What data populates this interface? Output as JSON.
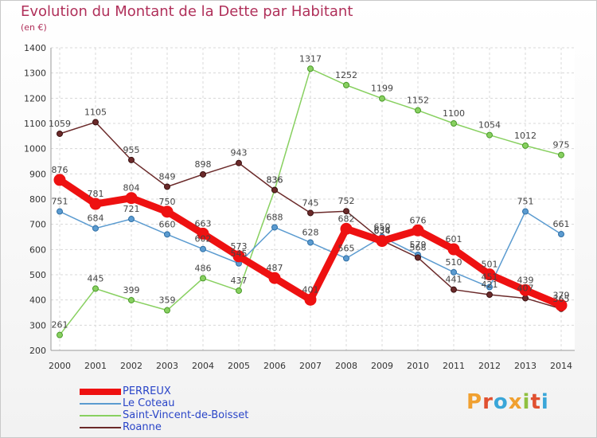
{
  "header": {
    "title": "Evolution du Montant de la Dette par Habitant",
    "subtitle": "(en €)"
  },
  "logo": {
    "text": "Proxiti",
    "colors": [
      "#f0a030",
      "#e05030",
      "#3aa6d8",
      "#f0a030",
      "#90c040",
      "#e05030",
      "#3aa6d8"
    ]
  },
  "chart_data": {
    "type": "line",
    "title": "Evolution du Montant de la Dette par Habitant",
    "ylabel": "(en €)",
    "xlabel": "",
    "x": [
      "2000",
      "2001",
      "2002",
      "2003",
      "2004",
      "2005",
      "2006",
      "2007",
      "2008",
      "2009",
      "2010",
      "2011",
      "2012",
      "2013",
      "2014"
    ],
    "ylim": [
      200,
      1400
    ],
    "yticks": [
      "200",
      "300",
      "400",
      "500",
      "600",
      "700",
      "800",
      "900",
      "1000",
      "1100",
      "1200",
      "1300",
      "1400"
    ],
    "grid": true,
    "legend_position": "bottom-left",
    "series": [
      {
        "name": "PERREUX",
        "color": "#ee1111",
        "values": [
          876,
          781,
          804,
          750,
          663,
          573,
          487,
          401,
          682,
          634,
          676,
          601,
          501,
          439,
          379
        ],
        "labels": [
          "876",
          "781",
          "804",
          "750",
          "663",
          "573",
          "487",
          "401",
          "682",
          "634",
          "676",
          "601",
          "501",
          "439",
          "379"
        ]
      },
      {
        "name": "Le Coteau",
        "color": "#5b9bd0",
        "values": [
          751,
          684,
          721,
          660,
          602,
          545,
          688,
          628,
          565,
          650,
          579,
          510,
          451,
          751,
          661
        ],
        "labels": [
          "751",
          "684",
          "721",
          "660",
          "602",
          "545",
          "688",
          "628",
          "565",
          "650",
          "579",
          "510",
          "451",
          "751",
          "661"
        ]
      },
      {
        "name": "Saint-Vincent-de-Boisset",
        "color": "#88d060",
        "values": [
          261,
          445,
          399,
          359,
          486,
          437,
          836,
          1317,
          1252,
          1199,
          1152,
          1100,
          1054,
          1012,
          975
        ],
        "labels": [
          "261",
          "445",
          "399",
          "359",
          "486",
          "437",
          "836",
          "1317",
          "1252",
          "1199",
          "1152",
          "1100",
          "1054",
          "1012",
          "975"
        ]
      },
      {
        "name": "Roanne",
        "color": "#6b2a2a",
        "values": [
          1059,
          1105,
          955,
          849,
          898,
          943,
          836,
          745,
          752,
          636,
          568,
          441,
          421,
          407,
          365
        ],
        "labels": [
          "1059",
          "1105",
          "955",
          "849",
          "898",
          "943",
          "836",
          "745",
          "752",
          "636",
          "568",
          "441",
          "421",
          "407",
          "365"
        ]
      }
    ]
  }
}
